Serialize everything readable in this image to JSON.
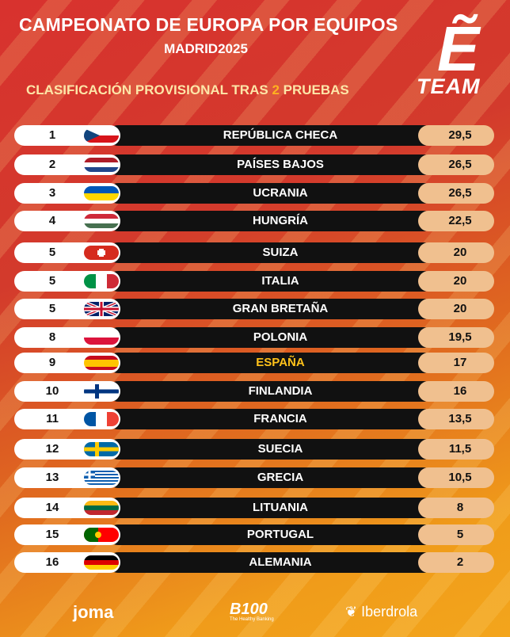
{
  "header": {
    "title_line1": "CAMPEONATO DE EUROPA POR EQUIPOS",
    "title_line2": "MADRID2025",
    "subtitle_pre": "CLASIFICACIÓN PROVISIONAL TRAS",
    "subtitle_num": "2",
    "subtitle_post": "PRUEBAS"
  },
  "logo": {
    "letter": "Ẽ",
    "word": "TEAM"
  },
  "standings": [
    {
      "rank": "1",
      "country": "REPÚBLICA CHECA",
      "score": "29,5",
      "flag": "cze"
    },
    {
      "rank": "2",
      "country": "PAÍSES BAJOS",
      "score": "26,5",
      "flag": "ned"
    },
    {
      "rank": "3",
      "country": "UCRANIA",
      "score": "26,5",
      "flag": "ukr"
    },
    {
      "rank": "4",
      "country": "HUNGRÍA",
      "score": "22,5",
      "flag": "hun"
    },
    {
      "rank": "5",
      "country": "SUIZA",
      "score": "20",
      "flag": "sui"
    },
    {
      "rank": "5",
      "country": "ITALIA",
      "score": "20",
      "flag": "ita"
    },
    {
      "rank": "5",
      "country": "GRAN BRETAÑA",
      "score": "20",
      "flag": "gbr"
    },
    {
      "rank": "8",
      "country": "POLONIA",
      "score": "19,5",
      "flag": "pol"
    },
    {
      "rank": "9",
      "country": "ESPAÑA",
      "score": "17",
      "flag": "esp",
      "highlight": true
    },
    {
      "rank": "10",
      "country": "FINLANDIA",
      "score": "16",
      "flag": "fin"
    },
    {
      "rank": "11",
      "country": "FRANCIA",
      "score": "13,5",
      "flag": "fra"
    },
    {
      "rank": "12",
      "country": "SUECIA",
      "score": "11,5",
      "flag": "swe"
    },
    {
      "rank": "13",
      "country": "GRECIA",
      "score": "10,5",
      "flag": "gre"
    },
    {
      "rank": "14",
      "country": "LITUANIA",
      "score": "8",
      "flag": "ltu"
    },
    {
      "rank": "15",
      "country": "PORTUGAL",
      "score": "5",
      "flag": "por"
    },
    {
      "rank": "16",
      "country": "ALEMANIA",
      "score": "2",
      "flag": "ger"
    }
  ],
  "sponsors": {
    "joma": "joma",
    "b100": "B100",
    "b100_tag": "The Healthy Banking",
    "iberdrola": "Iberdrola"
  },
  "colors": {
    "highlight": "#ffc21a",
    "score_bg": "#f0c08f",
    "bar_bg": "#111111"
  }
}
